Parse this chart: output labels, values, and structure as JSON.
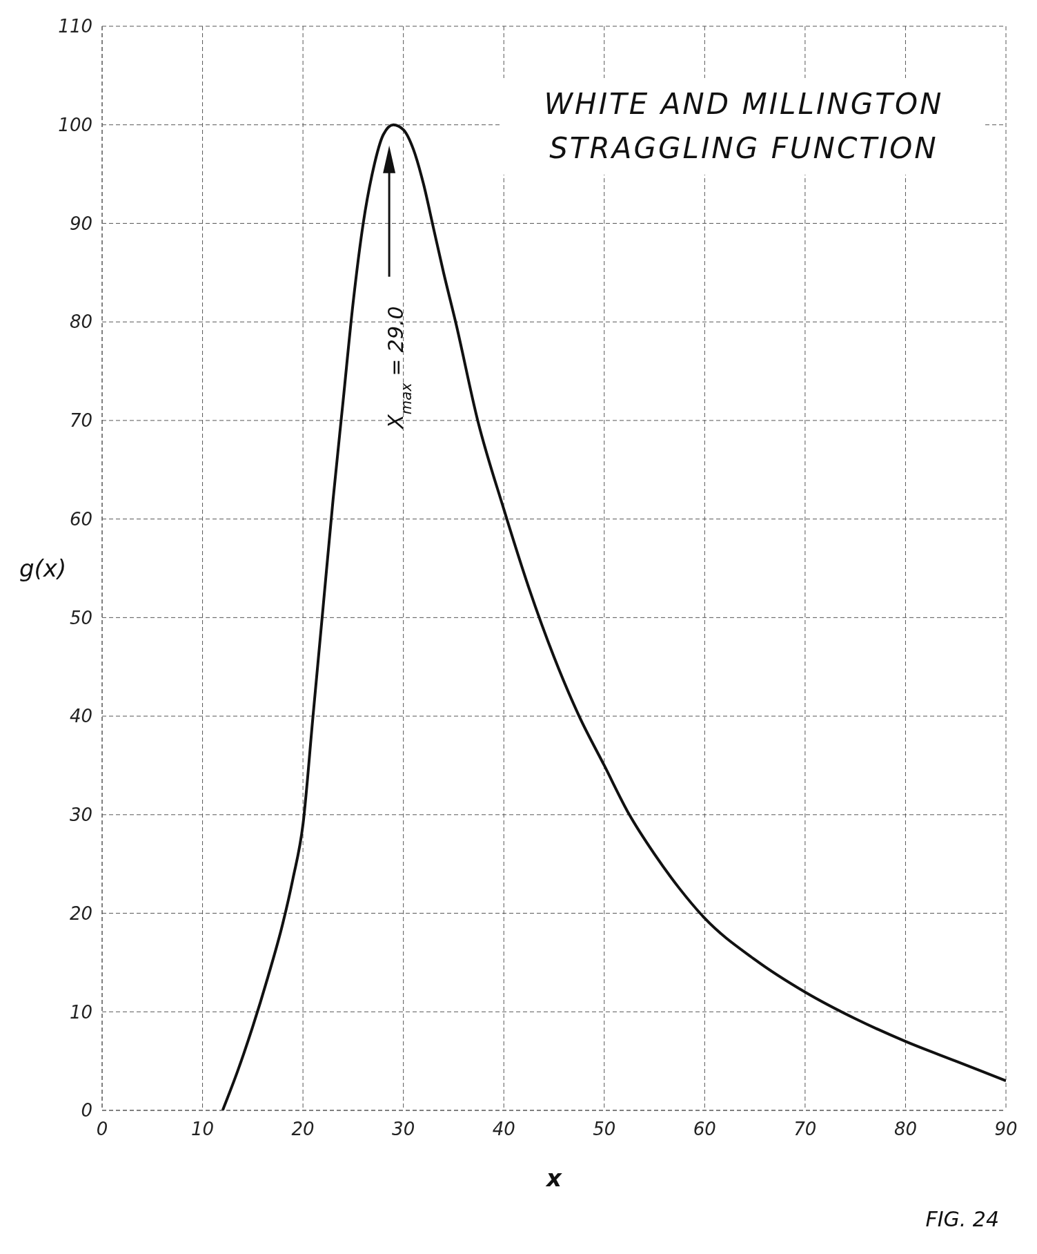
{
  "chart_data": {
    "type": "line",
    "title": "WHITE AND MILLINGTON STRAGGLING FUNCTION",
    "xlabel": "x",
    "ylabel": "g(x)",
    "x": [
      12,
      13.5,
      15,
      16.5,
      18,
      19,
      20,
      21,
      22,
      23,
      24,
      25,
      26,
      27,
      28,
      29,
      30,
      31,
      32,
      33,
      34,
      35.2,
      37.4,
      40,
      42.5,
      45,
      47.5,
      50,
      52.5,
      55,
      57.5,
      60,
      65,
      70,
      75,
      80,
      85,
      90
    ],
    "values": [
      0,
      4,
      8.5,
      13.5,
      19,
      23.5,
      29,
      40,
      51,
      62,
      72,
      82,
      90,
      95.5,
      99,
      100,
      99.5,
      97.5,
      94,
      89.5,
      85,
      80,
      70,
      61,
      53,
      46,
      40,
      35,
      30,
      26,
      22.5,
      19.5,
      15.3,
      12,
      9.3,
      7,
      5,
      3
    ],
    "color": "#111111",
    "xlim": [
      0,
      90
    ],
    "xticks": [
      0,
      10,
      20,
      30,
      40,
      50,
      60,
      70,
      80,
      90
    ],
    "ylim": [
      0,
      110
    ],
    "yticks": [
      0,
      10,
      20,
      30,
      40,
      50,
      60,
      70,
      80,
      90,
      100,
      110
    ],
    "grid": true,
    "annotations": [
      "X$_{max}$ = 29.0",
      "FIG. 24"
    ]
  }
}
